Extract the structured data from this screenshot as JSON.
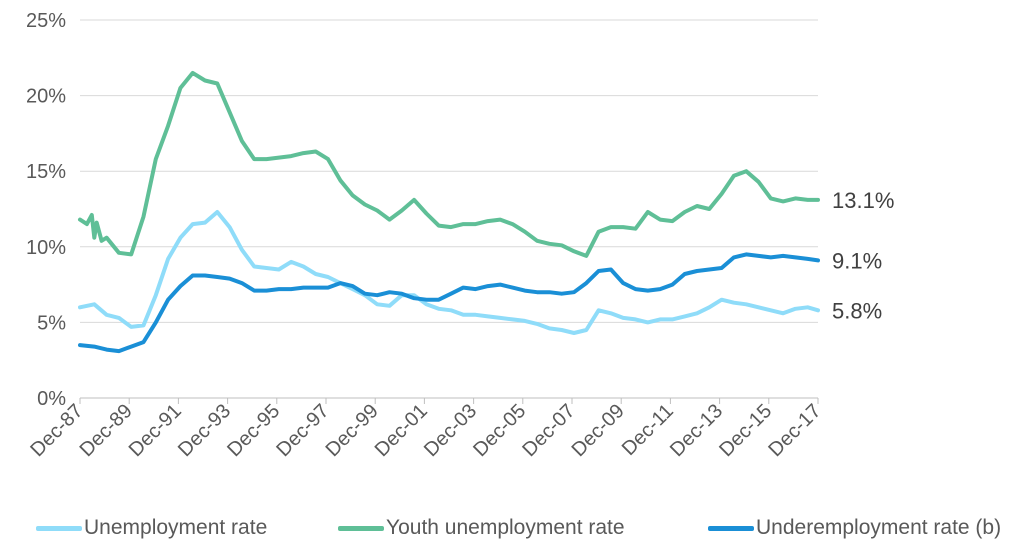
{
  "chart_data": {
    "type": "line",
    "title": "",
    "xlabel": "",
    "ylabel": "",
    "ylim": [
      0,
      25
    ],
    "y_ticks": [
      "0%",
      "5%",
      "10%",
      "15%",
      "20%",
      "25%"
    ],
    "x_ticks": [
      "Dec-87",
      "Dec-89",
      "Dec-91",
      "Dec-93",
      "Dec-95",
      "Dec-97",
      "Dec-99",
      "Dec-01",
      "Dec-03",
      "Dec-05",
      "Dec-07",
      "Dec-09",
      "Dec-11",
      "Dec-13",
      "Dec-15",
      "Dec-17"
    ],
    "x_range": [
      1987.92,
      2017.92
    ],
    "grid": "horizontal",
    "legend_position": "bottom",
    "series": [
      {
        "name": "Unemployment rate",
        "color": "#8fdcf9",
        "end_label": "5.8%",
        "x": [
          1987.92,
          1988.5,
          1989.0,
          1989.5,
          1990.0,
          1990.5,
          1991.0,
          1991.5,
          1992.0,
          1992.5,
          1993.0,
          1993.5,
          1994.0,
          1994.5,
          1995.0,
          1995.5,
          1996.0,
          1996.5,
          1997.0,
          1997.5,
          1998.0,
          1998.5,
          1999.0,
          1999.5,
          2000.0,
          2000.5,
          2001.0,
          2001.5,
          2002.0,
          2002.5,
          2003.0,
          2003.5,
          2004.0,
          2004.5,
          2005.0,
          2005.5,
          2006.0,
          2006.5,
          2007.0,
          2007.5,
          2008.0,
          2008.5,
          2009.0,
          2009.5,
          2010.0,
          2010.5,
          2011.0,
          2011.5,
          2012.0,
          2012.5,
          2013.0,
          2013.5,
          2014.0,
          2014.5,
          2015.0,
          2015.5,
          2016.0,
          2016.5,
          2017.0,
          2017.5,
          2017.92
        ],
        "values": [
          6.0,
          6.2,
          5.5,
          5.3,
          4.7,
          4.8,
          6.8,
          9.2,
          10.6,
          11.5,
          11.6,
          12.3,
          11.3,
          9.8,
          8.7,
          8.6,
          8.5,
          9.0,
          8.7,
          8.2,
          8.0,
          7.6,
          7.2,
          6.8,
          6.2,
          6.1,
          6.8,
          6.8,
          6.2,
          5.9,
          5.8,
          5.5,
          5.5,
          5.4,
          5.3,
          5.2,
          5.1,
          4.9,
          4.6,
          4.5,
          4.3,
          4.5,
          5.8,
          5.6,
          5.3,
          5.2,
          5.0,
          5.2,
          5.2,
          5.4,
          5.6,
          6.0,
          6.5,
          6.3,
          6.2,
          6.0,
          5.8,
          5.6,
          5.9,
          6.0,
          5.8
        ]
      },
      {
        "name": "Youth unemployment rate",
        "color": "#5fbf97",
        "end_label": "13.1%",
        "x": [
          1987.92,
          1988.2,
          1988.4,
          1988.5,
          1988.6,
          1988.8,
          1989.0,
          1989.5,
          1990.0,
          1990.5,
          1991.0,
          1991.5,
          1992.0,
          1992.5,
          1993.0,
          1993.5,
          1994.0,
          1994.5,
          1995.0,
          1995.5,
          1996.0,
          1996.5,
          1997.0,
          1997.5,
          1998.0,
          1998.5,
          1999.0,
          1999.5,
          2000.0,
          2000.5,
          2001.0,
          2001.5,
          2002.0,
          2002.5,
          2003.0,
          2003.5,
          2004.0,
          2004.5,
          2005.0,
          2005.5,
          2006.0,
          2006.5,
          2007.0,
          2007.5,
          2008.0,
          2008.5,
          2009.0,
          2009.5,
          2010.0,
          2010.5,
          2011.0,
          2011.5,
          2012.0,
          2012.5,
          2013.0,
          2013.5,
          2014.0,
          2014.5,
          2015.0,
          2015.5,
          2016.0,
          2016.5,
          2017.0,
          2017.5,
          2017.92
        ],
        "values": [
          11.8,
          11.5,
          12.1,
          10.6,
          11.6,
          10.4,
          10.6,
          9.6,
          9.5,
          12.0,
          15.8,
          18.0,
          20.5,
          21.5,
          21.0,
          20.8,
          18.9,
          17.0,
          15.8,
          15.8,
          15.9,
          16.0,
          16.2,
          16.3,
          15.8,
          14.4,
          13.4,
          12.8,
          12.4,
          11.8,
          12.4,
          13.1,
          12.2,
          11.4,
          11.3,
          11.5,
          11.5,
          11.7,
          11.8,
          11.5,
          11.0,
          10.4,
          10.2,
          10.1,
          9.7,
          9.4,
          11.0,
          11.3,
          11.3,
          11.2,
          12.3,
          11.8,
          11.7,
          12.3,
          12.7,
          12.5,
          13.5,
          14.7,
          15.0,
          14.3,
          13.2,
          13.0,
          13.2,
          13.1,
          13.1
        ]
      },
      {
        "name": "Underemployment rate (b)",
        "color": "#1a8fd6",
        "end_label": "9.1%",
        "x": [
          1987.92,
          1988.5,
          1989.0,
          1989.5,
          1990.0,
          1990.5,
          1991.0,
          1991.5,
          1992.0,
          1992.5,
          1993.0,
          1993.5,
          1994.0,
          1994.5,
          1995.0,
          1995.5,
          1996.0,
          1996.5,
          1997.0,
          1997.5,
          1998.0,
          1998.5,
          1999.0,
          1999.5,
          2000.0,
          2000.5,
          2001.0,
          2001.5,
          2002.0,
          2002.5,
          2003.0,
          2003.5,
          2004.0,
          2004.5,
          2005.0,
          2005.5,
          2006.0,
          2006.5,
          2007.0,
          2007.5,
          2008.0,
          2008.5,
          2009.0,
          2009.5,
          2010.0,
          2010.5,
          2011.0,
          2011.5,
          2012.0,
          2012.5,
          2013.0,
          2013.5,
          2014.0,
          2014.5,
          2015.0,
          2015.5,
          2016.0,
          2016.5,
          2017.0,
          2017.5,
          2017.92
        ],
        "values": [
          3.5,
          3.4,
          3.2,
          3.1,
          3.4,
          3.7,
          5.0,
          6.5,
          7.4,
          8.1,
          8.1,
          8.0,
          7.9,
          7.6,
          7.1,
          7.1,
          7.2,
          7.2,
          7.3,
          7.3,
          7.3,
          7.6,
          7.4,
          6.9,
          6.8,
          7.0,
          6.9,
          6.6,
          6.5,
          6.5,
          6.9,
          7.3,
          7.2,
          7.4,
          7.5,
          7.3,
          7.1,
          7.0,
          7.0,
          6.9,
          7.0,
          7.6,
          8.4,
          8.5,
          7.6,
          7.2,
          7.1,
          7.2,
          7.5,
          8.2,
          8.4,
          8.5,
          8.6,
          9.3,
          9.5,
          9.4,
          9.3,
          9.4,
          9.3,
          9.2,
          9.1
        ]
      }
    ]
  },
  "legend": {
    "items": [
      {
        "label": "Unemployment rate",
        "color": "#8fdcf9"
      },
      {
        "label": "Youth unemployment rate",
        "color": "#5fbf97"
      },
      {
        "label": "Underemployment rate (b)",
        "color": "#1a8fd6"
      }
    ]
  }
}
